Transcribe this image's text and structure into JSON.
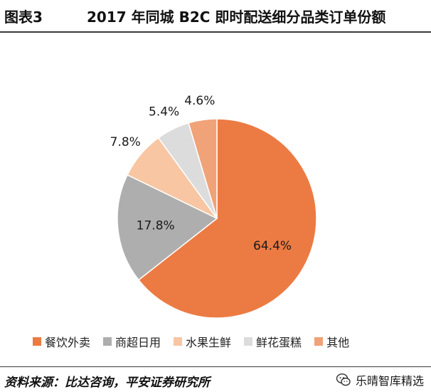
{
  "header": {
    "figure_number": "图表3",
    "title": "2017 年同城 B2C 即时配送细分品类订单份额"
  },
  "source": "资料来源：比达咨询，平安证券研究所",
  "watermark": {
    "text": "乐晴智库精选",
    "icon": "wechat-icon"
  },
  "chart_data": {
    "type": "pie",
    "title": "2017 年同城 B2C 即时配送细分品类订单份额",
    "slices": [
      {
        "label": "餐饮外卖",
        "value": 64.4,
        "display": "64.4%",
        "color": "#ec7b43"
      },
      {
        "label": "商超日用",
        "value": 17.8,
        "display": "17.8%",
        "color": "#aeaeae"
      },
      {
        "label": "水果生鲜",
        "value": 7.8,
        "display": "7.8%",
        "color": "#f8c6a2"
      },
      {
        "label": "鲜花蛋糕",
        "value": 5.4,
        "display": "5.4%",
        "color": "#dcdcdc"
      },
      {
        "label": "其他",
        "value": 4.6,
        "display": "4.6%",
        "color": "#f0a278"
      }
    ],
    "legend_position": "bottom"
  }
}
